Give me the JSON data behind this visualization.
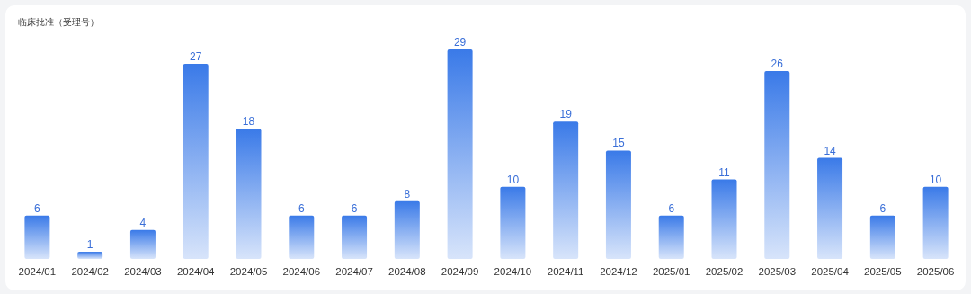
{
  "chart_data": {
    "type": "bar",
    "title": "临床批准（受理号）",
    "categories": [
      "2024/01",
      "2024/02",
      "2024/03",
      "2024/04",
      "2024/05",
      "2024/06",
      "2024/07",
      "2024/08",
      "2024/09",
      "2024/10",
      "2024/11",
      "2024/12",
      "2025/01",
      "2025/02",
      "2025/03",
      "2025/04",
      "2025/05",
      "2025/06"
    ],
    "values": [
      6,
      1,
      4,
      27,
      18,
      6,
      6,
      8,
      29,
      10,
      19,
      15,
      6,
      11,
      26,
      14,
      6,
      10
    ],
    "color": "#3a7ae8",
    "data_labels": true
  }
}
